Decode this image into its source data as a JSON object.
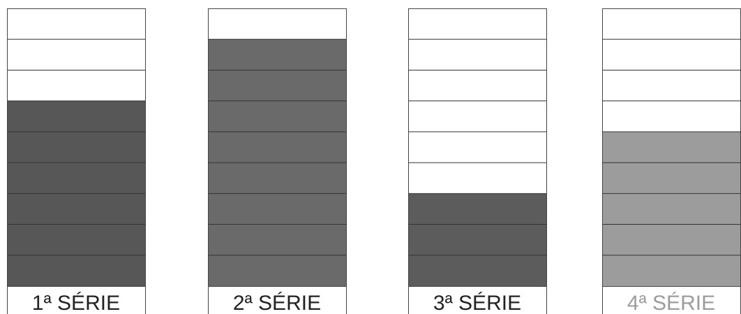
{
  "chart_data": {
    "type": "bar",
    "categories": [
      "1ª SÉRIE",
      "2ª SÉRIE",
      "3ª SÉRIE",
      "4ª SÉRIE"
    ],
    "values": [
      6,
      8,
      3,
      5
    ],
    "colors": [
      "#575757",
      "#6a6a6a",
      "#5c5c5c",
      "#9c9c9c"
    ],
    "ylim": [
      0,
      9
    ],
    "grid": true
  }
}
